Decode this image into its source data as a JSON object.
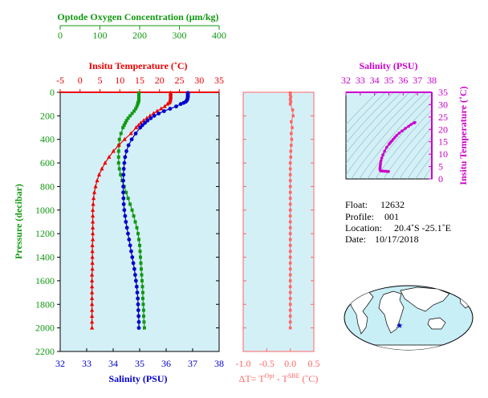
{
  "colors": {
    "oxygen": "#119911",
    "temperature": "#ee0000",
    "salinity": "#0000cc",
    "delta": "#ff6666",
    "ts": "#cc00cc",
    "panel_bg": "#d4f0f7"
  },
  "chart_data": [
    {
      "type": "line",
      "name": "profile",
      "y_axis": {
        "label": "Pressure (decibar)",
        "range": [
          0,
          2200
        ],
        "ticks": [
          0,
          200,
          400,
          600,
          800,
          1000,
          1200,
          1400,
          1600,
          1800,
          2000,
          2200
        ],
        "inverted": true
      },
      "axes": {
        "salinity": {
          "label": "Salinity (PSU)",
          "range": [
            32,
            38
          ],
          "ticks": [
            32,
            33,
            34,
            35,
            36,
            37,
            38
          ]
        },
        "temperature": {
          "label": "Insitu Temperature (˚C)",
          "range": [
            -5,
            35
          ],
          "ticks": [
            -5,
            0,
            5,
            10,
            15,
            20,
            25,
            30,
            35
          ]
        },
        "oxygen": {
          "label": "Optode Oxygen Concentration (μm/kg)",
          "range": [
            0,
            400
          ],
          "ticks": [
            0,
            100,
            200,
            300,
            400
          ]
        }
      },
      "pressure_levels": [
        5,
        10,
        20,
        30,
        40,
        50,
        60,
        70,
        80,
        90,
        100,
        120,
        140,
        160,
        180,
        200,
        220,
        240,
        260,
        280,
        300,
        350,
        400,
        450,
        500,
        550,
        600,
        650,
        700,
        750,
        800,
        850,
        900,
        950,
        1000,
        1050,
        1100,
        1150,
        1200,
        1250,
        1300,
        1350,
        1400,
        1450,
        1500,
        1550,
        1600,
        1650,
        1700,
        1750,
        1800,
        1850,
        1900,
        1950,
        2000
      ],
      "temperature_values": [
        22.8,
        22.8,
        22.8,
        22.8,
        22.8,
        22.8,
        22.7,
        22.7,
        22.6,
        22.4,
        22.0,
        21.3,
        20.4,
        19.4,
        18.5,
        17.6,
        16.8,
        16.0,
        15.3,
        14.7,
        14.1,
        12.8,
        11.2,
        9.7,
        8.4,
        7.3,
        6.3,
        5.5,
        4.8,
        4.3,
        3.9,
        3.6,
        3.4,
        3.3,
        3.2,
        3.2,
        3.2,
        3.2,
        3.2,
        3.2,
        3.1,
        3.1,
        3.1,
        3.1,
        3.1,
        3.0,
        3.0,
        3.0,
        3.0,
        3.0,
        3.0,
        3.0,
        3.0,
        3.0,
        3.0
      ],
      "salinity_values": [
        36.82,
        36.82,
        36.82,
        36.82,
        36.82,
        36.81,
        36.8,
        36.78,
        36.74,
        36.66,
        36.55,
        36.38,
        36.15,
        35.92,
        35.72,
        35.55,
        35.42,
        35.3,
        35.2,
        35.1,
        35.02,
        34.85,
        34.7,
        34.58,
        34.5,
        34.45,
        34.42,
        34.4,
        34.39,
        34.38,
        34.38,
        34.38,
        34.39,
        34.4,
        34.42,
        34.45,
        34.48,
        34.52,
        34.56,
        34.6,
        34.64,
        34.68,
        34.72,
        34.76,
        34.8,
        34.83,
        34.86,
        34.89,
        34.91,
        34.93,
        34.94,
        34.95,
        34.96,
        34.97,
        34.97
      ],
      "oxygen_values": [
        198,
        198,
        198,
        198,
        198,
        198,
        198,
        198,
        197,
        196,
        195,
        193,
        190,
        186,
        181,
        176,
        171,
        167,
        164,
        161,
        158,
        153,
        149,
        148,
        147,
        147,
        147,
        149,
        152,
        156,
        161,
        166,
        171,
        176,
        181,
        185,
        189,
        193,
        196,
        198,
        200,
        201,
        202,
        203,
        204,
        205,
        206,
        207,
        208,
        208,
        209,
        210,
        210,
        211,
        212
      ]
    },
    {
      "type": "scatter",
      "name": "delta_t",
      "xlabel": "ΔT= T",
      "xlabel_sup1": "Opt",
      "xlabel_mid": " - T",
      "xlabel_sup2": "SBE",
      "xlabel_unit": " (˚C)",
      "xlim": [
        -1.0,
        0.5
      ],
      "xticks": [
        "-1.0",
        "-0.5",
        "0.0",
        "0.5"
      ],
      "pressure_levels": [
        5,
        20,
        40,
        60,
        80,
        100,
        150,
        200,
        250,
        300,
        350,
        400,
        450,
        500,
        550,
        600,
        650,
        700,
        750,
        800,
        850,
        900,
        950,
        1000,
        1050,
        1100,
        1150,
        1200,
        1250,
        1300,
        1350,
        1400,
        1450,
        1500,
        1550,
        1600,
        1650,
        1700,
        1750,
        1800,
        1850,
        1900,
        1950,
        2000
      ],
      "values": [
        0.0,
        0.0,
        0.01,
        0.0,
        0.01,
        0.0,
        0.05,
        0.06,
        0.02,
        0.04,
        0.02,
        0.03,
        0.02,
        0.01,
        0.01,
        0.0,
        0.0,
        0.0,
        0.0,
        0.0,
        0.0,
        0.0,
        0.0,
        0.0,
        0.0,
        0.0,
        0.0,
        0.0,
        0.0,
        0.0,
        0.0,
        0.0,
        0.0,
        0.0,
        0.0,
        0.0,
        0.0,
        0.0,
        0.0,
        0.0,
        0.0,
        0.0,
        0.0,
        0.0
      ]
    },
    {
      "type": "scatter",
      "name": "ts_diagram",
      "xlabel": "Salinity (PSU)",
      "ylabel": "Insitu Temperature (˚C)",
      "xlim": [
        32,
        38
      ],
      "ylim": [
        0,
        35
      ],
      "xticks": [
        32,
        33,
        34,
        35,
        36,
        37,
        38
      ],
      "yticks": [
        0,
        5,
        10,
        15,
        20,
        25,
        30,
        35
      ],
      "salinity": [
        36.82,
        36.74,
        36.55,
        36.38,
        36.15,
        35.92,
        35.72,
        35.55,
        35.42,
        35.3,
        35.2,
        35.1,
        35.02,
        34.85,
        34.7,
        34.58,
        34.5,
        34.45,
        34.42,
        34.4,
        34.39,
        34.38,
        34.38,
        34.4,
        34.45,
        34.56,
        34.68,
        34.8,
        34.89,
        34.95,
        34.97
      ],
      "temperature": [
        22.8,
        22.6,
        22.0,
        21.3,
        20.4,
        19.4,
        18.5,
        17.6,
        16.8,
        16.0,
        15.3,
        14.7,
        14.1,
        12.8,
        11.2,
        9.7,
        8.4,
        7.3,
        6.3,
        5.5,
        4.8,
        4.3,
        3.9,
        3.4,
        3.2,
        3.2,
        3.1,
        3.1,
        3.0,
        3.0,
        3.0
      ]
    }
  ],
  "info": {
    "float_label": "Float:",
    "float_value": "12632",
    "profile_label": "Profile:",
    "profile_value": "001",
    "location_label": "Location:",
    "location_value": "20.4˚S  -25.1˚E",
    "date_label": "Date:",
    "date_value": "10/17/2018"
  },
  "map": {
    "icon": "world-map-icon",
    "marker_lon": -25.1,
    "marker_lat": -20.4
  }
}
